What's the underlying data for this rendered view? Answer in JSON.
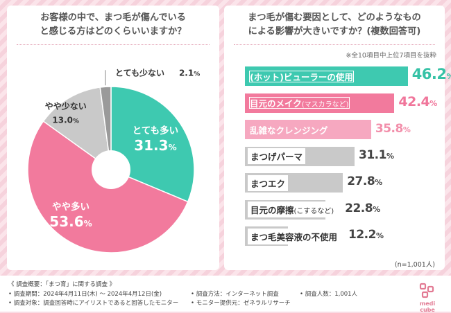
{
  "colors": {
    "teal": "#3ec9b0",
    "pink": "#f27a9d",
    "light_pink": "#f6a8c0",
    "gray": "#c9c9c9",
    "dark_gray": "#9a9a9a"
  },
  "left_panel": {
    "title_line1": "お客様の中で、まつ毛が傷んでいる",
    "title_line2": "と感じる方はどのくらいいますか？"
  },
  "right_panel": {
    "title_line1": "まつ毛が傷む要因として、どのようなもの",
    "title_line2": "による影響が大きいですか？(複数回答可)",
    "note": "※全10項目中上位7項目を抜粋",
    "n_count": "(n=1,001人)"
  },
  "chart_data": [
    {
      "type": "pie",
      "title": "お客様の中で、まつ毛が傷んでいると感じる方はどのくらいいますか？",
      "categories": [
        "とても多い",
        "やや多い",
        "やや少ない",
        "とても少ない"
      ],
      "values": [
        31.3,
        53.6,
        13.0,
        2.1
      ],
      "value_labels": [
        "31.3",
        "53.6",
        "13.0",
        "2.1"
      ],
      "unit": "%",
      "colors": [
        "#3ec9b0",
        "#f27a9d",
        "#c9c9c9",
        "#9a9a9a"
      ]
    },
    {
      "type": "bar",
      "orientation": "horizontal",
      "title": "まつ毛が傷む要因として、どのようなものによる影響が大きいですか？(複数回答可)",
      "categories": [
        "(ホット)ビューラーの使用",
        "目元のメイク(マスカラなど)",
        "乱雑なクレンジング",
        "まつげパーマ",
        "まつエク",
        "目元の摩擦(こするなど)",
        "まつ毛美容液の不使用"
      ],
      "label_main": [
        "(ホット)ビューラーの使用",
        "目元のメイク",
        "乱雑なクレンジング",
        "まつげパーマ",
        "まつエク",
        "目元の摩擦",
        "まつ毛美容液の不使用"
      ],
      "label_sub": [
        "",
        "(マスカラなど)",
        "",
        "",
        "",
        "(こするなど)",
        ""
      ],
      "values": [
        46.2,
        42.4,
        35.8,
        31.1,
        27.8,
        22.8,
        12.2
      ],
      "value_labels": [
        "46.2",
        "42.4",
        "35.8",
        "31.1",
        "27.8",
        "22.8",
        "12.2"
      ],
      "unit": "%",
      "xlim": [
        0,
        50
      ]
    }
  ],
  "footer": {
    "overview": "《 調査概要：「まつ育」に関する調査 》",
    "period": "• 調査期間：2024年4月11日(木) ～ 2024年4月12日(金)",
    "target": "• 調査対象：調査回答時にアイリストであると回答したモニター",
    "method": "• 調査方法：インターネット調査",
    "provider": "• モニター提供元：ゼネラルリサーチ",
    "people": "• 調査人数：1,001人",
    "logo_text": "medi cube"
  }
}
